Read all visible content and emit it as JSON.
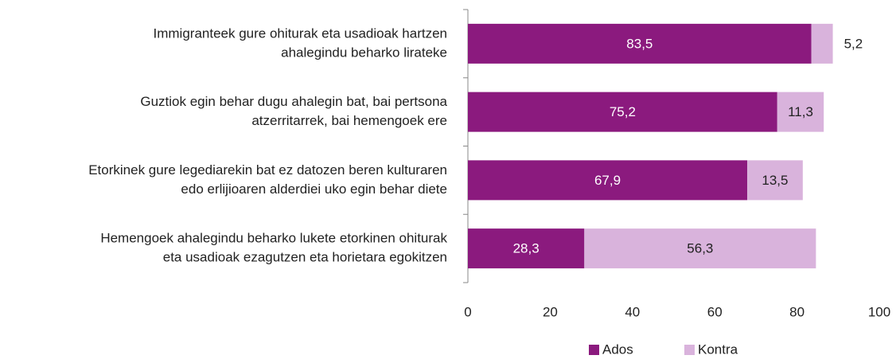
{
  "chart_data": {
    "type": "stacked-bar-horizontal",
    "categories": [
      [
        "Immigranteek gure ohiturak eta usadioak hartzen",
        "ahalegindu beharko lirateke"
      ],
      [
        "Guztiok egin behar dugu ahalegin bat, bai pertsona",
        "atzerritarrek, bai hemengoek ere"
      ],
      [
        "Etorkinek gure legediarekin bat ez datozen beren kulturaren",
        "edo erlijioaren alderdiei uko egin behar diete"
      ],
      [
        "Hemengoek ahalegindu beharko lukete etorkinen ohiturak",
        "eta usadioak ezagutzen eta horietara egokitzen"
      ]
    ],
    "series": [
      {
        "name": "Ados",
        "color": "#8b1a7e",
        "values": [
          83.5,
          75.2,
          67.9,
          28.3
        ],
        "value_labels": [
          "83,5",
          "75,2",
          "67,9",
          "28,3"
        ]
      },
      {
        "name": "Kontra",
        "color": "#d9b3dc",
        "values": [
          5.2,
          11.3,
          13.5,
          56.3
        ],
        "value_labels": [
          "5,2",
          "11,3",
          "13,5",
          "56,3"
        ]
      }
    ],
    "xlim": [
      0,
      100
    ],
    "xticks": [
      0,
      20,
      40,
      60,
      80,
      100
    ],
    "legend": "bottom"
  }
}
